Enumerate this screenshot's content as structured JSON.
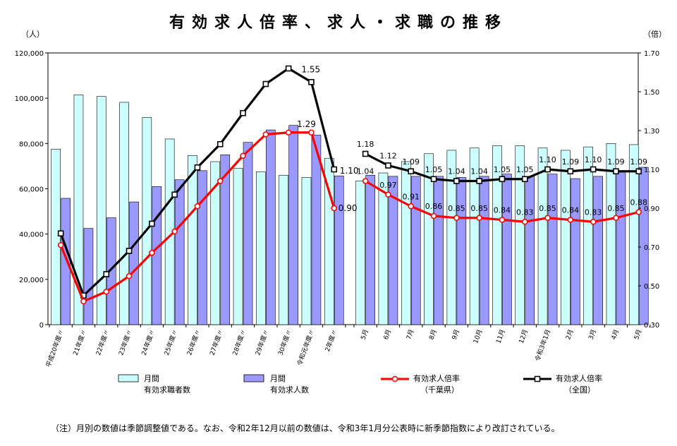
{
  "title": "有効求人倍率、求人・求職の推移",
  "units": {
    "left": "（人）",
    "right": "（倍）"
  },
  "legend": [
    {
      "line1": "月間",
      "line2": "有効求職者数",
      "type": "bar",
      "color": "#ccffff"
    },
    {
      "line1": "月間",
      "line2": "有効求人数",
      "type": "bar",
      "color": "#9999ff"
    },
    {
      "line1": "有効求人倍率",
      "line2": "（千葉県）",
      "type": "line",
      "color": "#ff0000"
    },
    {
      "line1": "有効求人倍率",
      "line2": "（全国）",
      "type": "line",
      "color": "#000000"
    }
  ],
  "footnote": "（注）月別の数値は季節調整値である。なお、令和2年12月以前の数値は、令和3年1月分公表時に新季節指数により改訂されている。",
  "chart_data": {
    "type": "bar",
    "left_axis": {
      "min": 0,
      "max": 120000,
      "ticks": [
        "0",
        "20,000",
        "40,000",
        "60,000",
        "80,000",
        "100,000",
        "120,000"
      ]
    },
    "right_axis": {
      "min": 0.3,
      "max": 1.7,
      "ticks": [
        "0.30",
        "0.50",
        "0.70",
        "0.90",
        "1.10",
        "1.30",
        "1.50",
        "1.70"
      ]
    },
    "groups": [
      {
        "categories": [
          "平成20年度",
          "21年度",
          "22年度",
          "23年度",
          "24年度",
          "25年度",
          "26年度",
          "27年度",
          "28年度",
          "29年度",
          "30年度",
          "令和元年度",
          "2年度"
        ],
        "seekers": [
          77500,
          101500,
          100800,
          98200,
          91500,
          82000,
          74700,
          72000,
          69000,
          67500,
          66000,
          65000,
          73500
        ],
        "openings": [
          55800,
          42500,
          47200,
          54200,
          61000,
          64000,
          68000,
          75000,
          80500,
          86000,
          88000,
          83700,
          65700
        ],
        "chiba": [
          0.71,
          0.42,
          0.47,
          0.55,
          0.67,
          0.78,
          0.91,
          1.04,
          1.17,
          1.28,
          1.29,
          1.29,
          0.9
        ],
        "national": [
          0.77,
          0.45,
          0.56,
          0.68,
          0.82,
          0.97,
          1.11,
          1.23,
          1.39,
          1.54,
          1.62,
          1.55,
          1.1
        ],
        "labels": [
          {
            "series": "national",
            "index": 11,
            "text": "1.55"
          },
          {
            "series": "chiba",
            "index": 10,
            "text": "1.29"
          },
          {
            "series": "national",
            "index": 12,
            "text": "1.10"
          },
          {
            "series": "chiba",
            "index": 12,
            "text": "0.90"
          }
        ]
      },
      {
        "categories": [
          "5月",
          "6月",
          "7月",
          "8月",
          "9月",
          "10月",
          "11月",
          "12月",
          "令和3年1月",
          "2月",
          "3月",
          "4月",
          "5月"
        ],
        "seekers": [
          63500,
          67000,
          72000,
          75500,
          77000,
          78000,
          79000,
          79000,
          78000,
          77000,
          78500,
          80000,
          79500
        ],
        "openings": [
          66000,
          65500,
          65500,
          65500,
          65000,
          65500,
          66500,
          65500,
          66500,
          64500,
          65500,
          67500,
          69500
        ],
        "chiba": [
          1.04,
          0.97,
          0.91,
          0.86,
          0.85,
          0.85,
          0.84,
          0.83,
          0.85,
          0.84,
          0.83,
          0.85,
          0.88
        ],
        "national": [
          1.18,
          1.12,
          1.09,
          1.05,
          1.04,
          1.04,
          1.05,
          1.05,
          1.1,
          1.09,
          1.1,
          1.09,
          1.09
        ],
        "chiba_labels": [
          "1.04",
          "0.97",
          "0.91",
          "0.86",
          "0.85",
          "0.85",
          "0.84",
          "0.83",
          "0.85",
          "0.84",
          "0.83",
          "0.85",
          "0.88"
        ],
        "national_labels": [
          "1.18",
          "1.12",
          "1.09",
          "1.05",
          "1.04",
          "1.04",
          "1.05",
          "1.05",
          "1.10",
          "1.09",
          "1.10",
          "1.09",
          "1.09"
        ]
      }
    ],
    "colors": {
      "seekers": "#ccffff",
      "openings": "#9999ff",
      "chiba": "#ff0000",
      "national": "#000000"
    }
  }
}
